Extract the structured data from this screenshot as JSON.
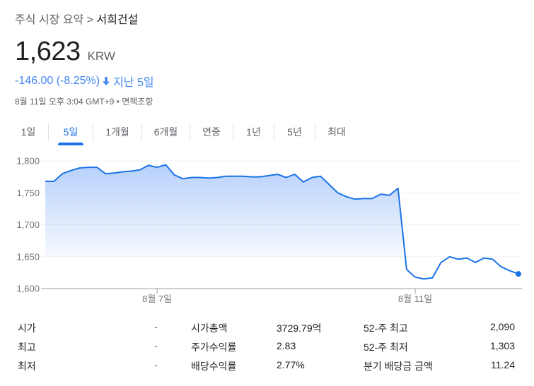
{
  "breadcrumb": {
    "parent": "주식 시장 요약",
    "separator": ">",
    "current": "서희건설"
  },
  "quote": {
    "price": "1,623",
    "currency": "KRW",
    "change": "-146.00 (-8.25%)",
    "direction_icon": "arrow-down-icon",
    "period": "지난 5일",
    "timestamp": "8월 11일 오후 3:04 GMT+9",
    "bullet": "•",
    "disclaimer": "면책조항",
    "change_color": "#4285f4"
  },
  "tabs": [
    {
      "label": "1일",
      "active": false
    },
    {
      "label": "5일",
      "active": true
    },
    {
      "label": "1개월",
      "active": false
    },
    {
      "label": "6개월",
      "active": false
    },
    {
      "label": "연중",
      "active": false
    },
    {
      "label": "1년",
      "active": false
    },
    {
      "label": "5년",
      "active": false
    },
    {
      "label": "최대",
      "active": false
    }
  ],
  "chart_data": {
    "type": "area",
    "title": "",
    "xlabel": "",
    "ylabel": "",
    "ylim": [
      1600,
      1800
    ],
    "yticks": [
      "1,600",
      "1,650",
      "1,700",
      "1,750",
      "1,800"
    ],
    "yticks_values": [
      1600,
      1650,
      1700,
      1750,
      1800
    ],
    "xticks": [
      {
        "label": "8월 7일",
        "index": 13
      },
      {
        "label": "8월 11일",
        "index": 43
      }
    ],
    "grid": true,
    "line_color": "#1a73e8",
    "fill_color": "#4285f4",
    "previous_close_reference_fill_until_index": 42,
    "series": [
      {
        "name": "서희건설",
        "values": [
          1768,
          1768,
          1780,
          1785,
          1789,
          1790,
          1790,
          1780,
          1781,
          1783,
          1784,
          1786,
          1793,
          1790,
          1794,
          1778,
          1772,
          1774,
          1774,
          1773,
          1774,
          1776,
          1776,
          1776,
          1775,
          1775,
          1777,
          1779,
          1774,
          1779,
          1767,
          1774,
          1776,
          1763,
          1750,
          1744,
          1740,
          1741,
          1741,
          1748,
          1746,
          1757,
          1630,
          1618,
          1615,
          1617,
          1641,
          1650,
          1646,
          1648,
          1641,
          1648,
          1646,
          1634,
          1628,
          1623
        ]
      }
    ],
    "last_point": 1623
  },
  "stats": {
    "rows": [
      {
        "label1": "시가",
        "value1": "-",
        "label2": "시가총액",
        "value2": "3729.79억",
        "label3": "52-주 최고",
        "value3": "2,090"
      },
      {
        "label1": "최고",
        "value1": "-",
        "label2": "주가수익률",
        "value2": "2.83",
        "label3": "52-주 최저",
        "value3": "1,303"
      },
      {
        "label1": "최저",
        "value1": "-",
        "label2": "배당수익률",
        "value2": "2.77%",
        "label3": "분기 배당금 금액",
        "value3": "11.24"
      }
    ]
  }
}
